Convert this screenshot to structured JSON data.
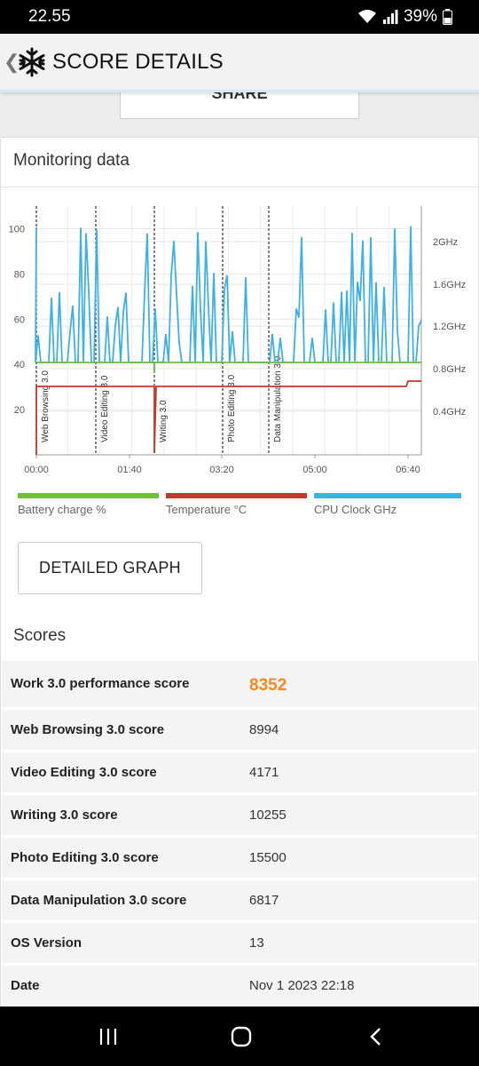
{
  "status": {
    "time": "22.55",
    "battery": "39%"
  },
  "header": {
    "title": "SCORE DETAILS",
    "logo_icon": "snowflake-icon",
    "back_icon": "chevron-left-icon"
  },
  "share": {
    "label": "SHARE"
  },
  "monitoring": {
    "title": "Monitoring data"
  },
  "chart_data": {
    "type": "line",
    "left_axis": {
      "ticks": [
        "100",
        "80",
        "60",
        "40",
        "20"
      ]
    },
    "right_axis": {
      "ticks": [
        "2GHz",
        "1.6GHz",
        "1.2GHz",
        "0.8GHz",
        "0.4GHz"
      ]
    },
    "x_ticks": [
      "00:00",
      "01:40",
      "03:20",
      "05:00",
      "06:40"
    ],
    "sections": [
      "Web Browsing 3.0",
      "Video Editing 3.0",
      "Writing 3.0",
      "Photo Editing 3.0",
      "Data Manipulation 3.0"
    ],
    "series": [
      {
        "name": "Battery charge %",
        "color": "#6dbf3c",
        "values": [
          40,
          40,
          40,
          40,
          40,
          40,
          40,
          40
        ]
      },
      {
        "name": "Temperature °C",
        "color": "#c0392b",
        "values": [
          30,
          30,
          30,
          30,
          30,
          30,
          30,
          32
        ]
      },
      {
        "name": "CPU Clock GHz",
        "color": "#3eb1e0",
        "values": [
          0.9,
          1.0,
          0.8,
          1.6,
          0.8,
          1.4,
          0.9,
          2.0,
          0.8,
          1.2,
          0.8,
          1.9,
          0.8,
          1.5,
          1.0,
          2.1,
          0.8,
          1.8,
          0.8,
          1.3,
          0.8,
          1.1
        ]
      }
    ]
  },
  "legend": [
    {
      "label": "Battery charge %",
      "color": "#6dbf3c"
    },
    {
      "label": "Temperature °C",
      "color": "#c0392b"
    },
    {
      "label": "CPU Clock GHz",
      "color": "#3eb1e0"
    }
  ],
  "detailed_graph": {
    "label": "DETAILED GRAPH"
  },
  "scores": {
    "title": "Scores",
    "rows": [
      {
        "label": "Work 3.0 performance score",
        "value": "8352"
      },
      {
        "label": "Web Browsing 3.0 score",
        "value": "8994"
      },
      {
        "label": "Video Editing 3.0 score",
        "value": "4171"
      },
      {
        "label": "Writing 3.0 score",
        "value": "10255"
      },
      {
        "label": "Photo Editing 3.0 score",
        "value": "15500"
      },
      {
        "label": "Data Manipulation 3.0 score",
        "value": "6817"
      },
      {
        "label": "OS Version",
        "value": "13"
      },
      {
        "label": "Date",
        "value": "Nov 1 2023 22:18"
      }
    ]
  },
  "navbar": {
    "recents_icon": "recents-icon",
    "home_icon": "home-icon",
    "back_icon": "back-icon"
  }
}
